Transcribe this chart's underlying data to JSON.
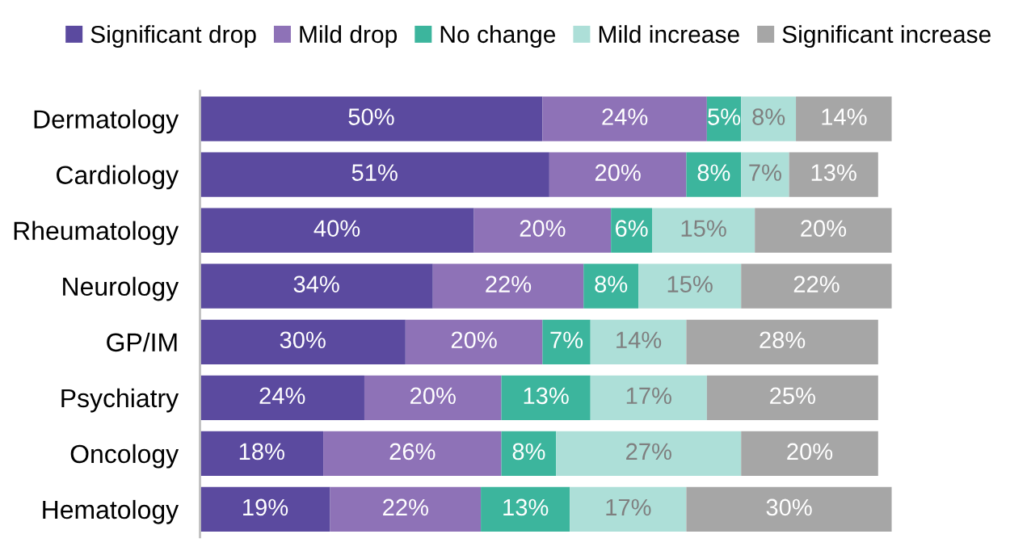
{
  "chart_data": {
    "type": "bar",
    "orientation": "horizontal",
    "stacked": true,
    "categories": [
      "Dermatology",
      "Cardiology",
      "Rheumatology",
      "Neurology",
      "GP/IM",
      "Psychiatry",
      "Oncology",
      "Hematology"
    ],
    "xlim": [
      0,
      101
    ],
    "tick_labels": "y",
    "legend": "top",
    "grid": false,
    "series": [
      {
        "name": "Significant drop",
        "color": "#5b4a9f",
        "values": [
          50,
          51,
          40,
          34,
          30,
          24,
          18,
          19
        ],
        "value_labels": [
          "50%",
          "51%",
          "40%",
          "34%",
          "30%",
          "24%",
          "18%",
          "19%"
        ]
      },
      {
        "name": "Mild drop",
        "color": "#8e72b7",
        "values": [
          24,
          20,
          20,
          22,
          20,
          20,
          26,
          22
        ],
        "value_labels": [
          "24%",
          "20%",
          "20%",
          "22%",
          "20%",
          "20%",
          "26%",
          "22%"
        ]
      },
      {
        "name": "No change",
        "color": "#3cb59d",
        "values": [
          5,
          8,
          6,
          8,
          7,
          13,
          8,
          13
        ],
        "value_labels": [
          "5%",
          "8%",
          "6%",
          "8%",
          "7%",
          "13%",
          "8%",
          "13%"
        ]
      },
      {
        "name": "Mild increase",
        "color": "#addfd8",
        "values": [
          8,
          7,
          15,
          15,
          14,
          17,
          27,
          17
        ],
        "value_labels": [
          "8%",
          "7%",
          "15%",
          "15%",
          "14%",
          "17%",
          "27%",
          "17%"
        ]
      },
      {
        "name": "Significant increase",
        "color": "#a6a6a6",
        "values": [
          14,
          13,
          20,
          22,
          28,
          25,
          20,
          30
        ],
        "value_labels": [
          "14%",
          "13%",
          "20%",
          "22%",
          "28%",
          "25%",
          "20%",
          "30%"
        ]
      }
    ]
  }
}
